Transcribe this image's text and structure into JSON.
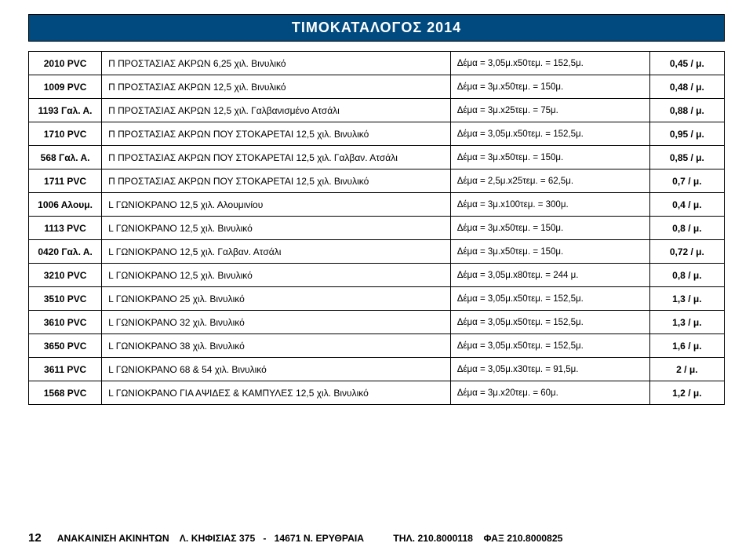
{
  "title": "ΤΙΜΟΚΑΤΑΛΟΓΟΣ   2014",
  "rows": [
    {
      "code": "2010 PVC",
      "desc": "Π ΠΡΟΣΤΑΣΙΑΣ ΑΚΡΩΝ 6,25 χιλ. Βινυλικό",
      "pack": "Δέμα = 3,05μ.x50τεμ. = 152,5μ.",
      "price": "0,45 / μ."
    },
    {
      "code": "1009 PVC",
      "desc": "Π ΠΡΟΣΤΑΣΙΑΣ ΑΚΡΩΝ 12,5 χιλ. Βινυλικό",
      "pack": "Δέμα = 3μ.x50τεμ. = 150μ.",
      "price": "0,48 / μ."
    },
    {
      "code": "1193 Γαλ. Α.",
      "desc": "Π ΠΡΟΣΤΑΣΙΑΣ ΑΚΡΩΝ 12,5 χιλ. Γαλβανισμένο Ατσάλι",
      "pack": "Δέμα = 3μ.x25τεμ. = 75μ.",
      "price": "0,88 / μ."
    },
    {
      "code": "1710 PVC",
      "desc": "Π ΠΡΟΣΤΑΣΙΑΣ ΑΚΡΩΝ ΠΟΥ ΣΤΟΚΑΡΕΤΑΙ 12,5 χιλ. Βινυλικό",
      "pack": "Δέμα = 3,05μ.x50τεμ. = 152,5μ.",
      "price": "0,95 / μ."
    },
    {
      "code": "568 Γαλ. Α.",
      "desc": "Π ΠΡΟΣΤΑΣΙΑΣ ΑΚΡΩΝ ΠΟΥ ΣΤΟΚΑΡΕΤΑΙ 12,5 χιλ. Γαλβαν. Ατσάλι",
      "pack": "Δέμα = 3μ.x50τεμ. = 150μ.",
      "price": "0,85 / μ."
    },
    {
      "code": "1711 PVC",
      "desc": "Π ΠΡΟΣΤΑΣΙΑΣ ΑΚΡΩΝ ΠΟΥ ΣΤΟΚΑΡΕΤΑΙ 12,5 χιλ. Βινυλικό",
      "pack": "Δέμα = 2,5μ.x25τεμ. = 62,5μ.",
      "price": "0,7 / μ."
    },
    {
      "code": "1006 Αλουμ.",
      "desc": "L ΓΩΝΙΟΚΡΑΝΟ 12,5 χιλ. Αλουμινίου",
      "pack": "Δέμα = 3μ.x100τεμ. = 300μ.",
      "price": "0,4 / μ."
    },
    {
      "code": "1113 PVC",
      "desc": "L ΓΩΝΙΟΚΡΑΝΟ 12,5 χιλ. Βινυλικό",
      "pack": "Δέμα = 3μ.x50τεμ. = 150μ.",
      "price": "0,8 / μ."
    },
    {
      "code": "0420 Γαλ. Α.",
      "desc": "L ΓΩΝΙΟΚΡΑΝΟ 12,5 χιλ. Γαλβαν. Ατσάλι",
      "pack": "Δέμα = 3μ.x50τεμ. = 150μ.",
      "price": "0,72 / μ."
    },
    {
      "code": "3210 PVC",
      "desc": "L ΓΩΝΙΟΚΡΑΝΟ 12,5 χιλ. Βινυλικό",
      "pack": "Δέμα = 3,05μ.x80τεμ. = 244 μ.",
      "price": "0,8 / μ."
    },
    {
      "code": "3510 PVC",
      "desc": "L ΓΩΝΙΟΚΡΑΝΟ 25 χιλ. Βινυλικό",
      "pack": "Δέμα = 3,05μ.x50τεμ. = 152,5μ.",
      "price": "1,3 / μ."
    },
    {
      "code": "3610 PVC",
      "desc": "L ΓΩΝΙΟΚΡΑΝΟ 32 χιλ. Βινυλικό",
      "pack": "Δέμα = 3,05μ.x50τεμ. = 152,5μ.",
      "price": "1,3 / μ."
    },
    {
      "code": "3650 PVC",
      "desc": "L ΓΩΝΙΟΚΡΑΝΟ 38 χιλ. Βινυλικό",
      "pack": "Δέμα = 3,05μ.x50τεμ. = 152,5μ.",
      "price": "1,6 / μ."
    },
    {
      "code": "3611 PVC",
      "desc": "L ΓΩΝΙΟΚΡΑΝΟ 68 & 54 χιλ. Βινυλικό",
      "pack": "Δέμα = 3,05μ.x30τεμ. = 91,5μ.",
      "price": "2 / μ."
    },
    {
      "code": "1568 PVC",
      "desc": "L ΓΩΝΙΟΚΡΑΝΟ ΓΙΑ ΑΨΙΔΕΣ & ΚΑΜΠΥΛΕΣ 12,5 χιλ. Βινυλικό",
      "pack": "Δέμα = 3μ.x20τεμ. = 60μ.",
      "price": "1,2 / μ."
    }
  ],
  "footer": {
    "page": "12",
    "text": "ΑΝΑΚΑΙΝΙΣΗ ΑΚΙΝΗΤΩΝ    Λ. ΚΗΦΙΣΙΑΣ 375   -   14671 Ν. ΕΡΥΘΡΑΙΑ           ΤΗΛ. 210.8000118    ΦΑΞ 210.8000825"
  },
  "colors": {
    "header_bg": "#004a80",
    "header_fg": "#ffffff",
    "border": "#000000",
    "text": "#000000",
    "bg": "#ffffff"
  }
}
